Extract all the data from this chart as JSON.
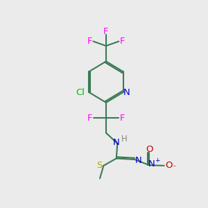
{
  "bg_color": "#ebebeb",
  "bond_color": "#3a7a55",
  "bond_width": 1.5,
  "atom_colors": {
    "F": "#ff00ff",
    "Cl": "#00bb00",
    "N": "#0000cc",
    "O": "#cc0000",
    "S": "#aaaa00",
    "H": "#888888",
    "C": "#3a7a55"
  },
  "font_size": 9.5
}
